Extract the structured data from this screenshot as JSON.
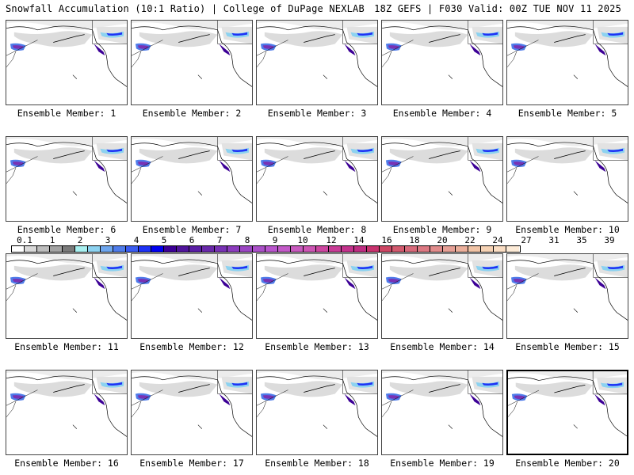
{
  "header": {
    "left": "Snowfall Accumulation (10:1 Ratio) | College of DuPage NEXLAB",
    "right": "18Z GEFS | F030 Valid: 00Z TUE NOV 11 2025"
  },
  "colorbar": {
    "tick_labels": [
      "0.1",
      "1",
      "2",
      "3",
      "4",
      "5",
      "6",
      "7",
      "8",
      "9",
      "10",
      "12",
      "14",
      "16",
      "18",
      "20",
      "22",
      "24",
      "27",
      "31",
      "35",
      "39"
    ],
    "colors": [
      "#ffffff",
      "#d9d9d9",
      "#bdbdbd",
      "#a3a3a3",
      "#7a7a7a",
      "#a8f0f0",
      "#8cd2f0",
      "#6ea6ee",
      "#4f7cea",
      "#3a5cf0",
      "#1e32f5",
      "#0000f0",
      "#3c0096",
      "#50149b",
      "#5a1ea5",
      "#6928aa",
      "#7832b4",
      "#8c3cbe",
      "#9b46c3",
      "#aa50c8",
      "#b955cd",
      "#c35ac8",
      "#c85abe",
      "#cd55b4",
      "#cd46a0",
      "#c83c96",
      "#c3328c",
      "#be2d82",
      "#c8326e",
      "#cd4664",
      "#d25a6e",
      "#d7697a",
      "#dc7882",
      "#e18c8c",
      "#e6a096",
      "#ebaf9b",
      "#f0c3a5",
      "#f5d2b4",
      "#faddc3",
      "#fdebd7"
    ]
  },
  "panels": [
    {
      "label": "Ensemble Member: 1"
    },
    {
      "label": "Ensemble Member: 2"
    },
    {
      "label": "Ensemble Member: 3"
    },
    {
      "label": "Ensemble Member: 4"
    },
    {
      "label": "Ensemble Member: 5"
    },
    {
      "label": "Ensemble Member: 6"
    },
    {
      "label": "Ensemble Member: 7"
    },
    {
      "label": "Ensemble Member: 8"
    },
    {
      "label": "Ensemble Member: 9"
    },
    {
      "label": "Ensemble Member: 10"
    },
    {
      "label": "Ensemble Member: 11"
    },
    {
      "label": "Ensemble Member: 12"
    },
    {
      "label": "Ensemble Member: 13"
    },
    {
      "label": "Ensemble Member: 14"
    },
    {
      "label": "Ensemble Member: 15"
    },
    {
      "label": "Ensemble Member: 16"
    },
    {
      "label": "Ensemble Member: 17"
    },
    {
      "label": "Ensemble Member: 18"
    },
    {
      "label": "Ensemble Member: 19"
    },
    {
      "label": "Ensemble Member: 20",
      "selected": true
    }
  ]
}
